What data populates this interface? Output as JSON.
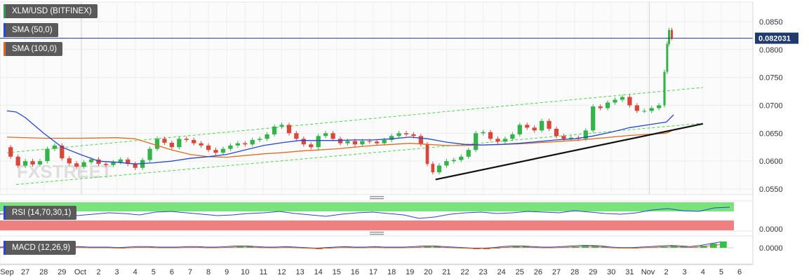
{
  "title": "XLM/USD (BITFINEX)",
  "watermark": "FXSTREET",
  "indicators": {
    "sma50": {
      "label": "SMA (50,0)",
      "color": "#2546d8"
    },
    "sma100": {
      "label": "SMA (100,0)",
      "color": "#e06b1f"
    },
    "rsi": {
      "label": "RSI (14,70,30,1)",
      "axis_label": "0.0000"
    },
    "macd": {
      "label": "MACD (12,26,9)",
      "axis_label": "0.0000"
    }
  },
  "price_tag": "0.082031",
  "chart_data": {
    "type": "candlestick",
    "title": "XLM/USD (BITFINEX)",
    "ylim": [
      0.054,
      0.0885
    ],
    "y_ticks": [
      "0.0850",
      "0.0800",
      "0.0750",
      "0.0700",
      "0.0650",
      "0.0600",
      "0.0550"
    ],
    "x_ticks": [
      "Sep",
      "27",
      "28",
      "29",
      "Oct",
      "2",
      "3",
      "4",
      "5",
      "6",
      "7",
      "8",
      "9",
      "10",
      "11",
      "12",
      "13",
      "14",
      "15",
      "16",
      "17",
      "18",
      "19",
      "20",
      "21",
      "22",
      "23",
      "24",
      "25",
      "26",
      "27",
      "28",
      "29",
      "30",
      "31",
      "Nov",
      "2",
      "3",
      "4",
      "5",
      "6"
    ],
    "last_price": 0.082031,
    "price_path": [
      [
        0,
        0.0625
      ],
      [
        0.4,
        0.0608
      ],
      [
        0.8,
        0.0592
      ],
      [
        1.2,
        0.06
      ],
      [
        1.6,
        0.0594
      ],
      [
        2.0,
        0.06
      ],
      [
        2.4,
        0.0622
      ],
      [
        2.8,
        0.0628
      ],
      [
        3.2,
        0.0605
      ],
      [
        3.6,
        0.0596
      ],
      [
        4.0,
        0.059
      ],
      [
        4.4,
        0.0598
      ],
      [
        4.8,
        0.0603
      ],
      [
        5.2,
        0.0595
      ],
      [
        5.6,
        0.0593
      ],
      [
        6.0,
        0.0598
      ],
      [
        6.4,
        0.0603
      ],
      [
        6.8,
        0.0595
      ],
      [
        7.2,
        0.0588
      ],
      [
        7.6,
        0.0602
      ],
      [
        8.0,
        0.0622
      ],
      [
        8.4,
        0.064
      ],
      [
        8.8,
        0.0633
      ],
      [
        9.2,
        0.0625
      ],
      [
        9.6,
        0.064
      ],
      [
        10.0,
        0.0638
      ],
      [
        10.4,
        0.0632
      ],
      [
        10.8,
        0.0628
      ],
      [
        11.2,
        0.062
      ],
      [
        11.6,
        0.0615
      ],
      [
        12.0,
        0.0622
      ],
      [
        12.4,
        0.0628
      ],
      [
        12.8,
        0.0632
      ],
      [
        13.2,
        0.063
      ],
      [
        13.6,
        0.0638
      ],
      [
        14.0,
        0.064
      ],
      [
        14.4,
        0.0648
      ],
      [
        14.8,
        0.0662
      ],
      [
        15.2,
        0.0665
      ],
      [
        15.6,
        0.065
      ],
      [
        16.0,
        0.064
      ],
      [
        16.4,
        0.063
      ],
      [
        16.8,
        0.0625
      ],
      [
        17.2,
        0.0645
      ],
      [
        17.6,
        0.065
      ],
      [
        18.0,
        0.064
      ],
      [
        18.4,
        0.0632
      ],
      [
        18.8,
        0.0636
      ],
      [
        19.2,
        0.063
      ],
      [
        19.6,
        0.0636
      ],
      [
        20.0,
        0.0635
      ],
      [
        20.4,
        0.0632
      ],
      [
        20.8,
        0.0638
      ],
      [
        21.2,
        0.0645
      ],
      [
        21.6,
        0.065
      ],
      [
        22.0,
        0.0648
      ],
      [
        22.4,
        0.0645
      ],
      [
        22.8,
        0.063
      ],
      [
        23.1,
        0.0595
      ],
      [
        23.4,
        0.058
      ],
      [
        23.8,
        0.0592
      ],
      [
        24.2,
        0.06
      ],
      [
        24.6,
        0.0602
      ],
      [
        25.0,
        0.0608
      ],
      [
        25.4,
        0.062
      ],
      [
        25.8,
        0.065
      ],
      [
        26.2,
        0.0652
      ],
      [
        26.6,
        0.064
      ],
      [
        27.0,
        0.0635
      ],
      [
        27.4,
        0.064
      ],
      [
        27.8,
        0.0648
      ],
      [
        28.2,
        0.0665
      ],
      [
        28.6,
        0.066
      ],
      [
        29.0,
        0.0655
      ],
      [
        29.4,
        0.0672
      ],
      [
        29.8,
        0.0658
      ],
      [
        30.2,
        0.0645
      ],
      [
        30.6,
        0.064
      ],
      [
        31.0,
        0.0642
      ],
      [
        31.4,
        0.064
      ],
      [
        31.8,
        0.0655
      ],
      [
        32.2,
        0.0698
      ],
      [
        32.6,
        0.0695
      ],
      [
        33.0,
        0.0705
      ],
      [
        33.4,
        0.071
      ],
      [
        33.8,
        0.0715
      ],
      [
        34.2,
        0.07
      ],
      [
        34.6,
        0.069
      ],
      [
        35.0,
        0.069
      ],
      [
        35.4,
        0.0695
      ],
      [
        35.8,
        0.07
      ],
      [
        36.0,
        0.076
      ],
      [
        36.1,
        0.081
      ],
      [
        36.2,
        0.0835
      ],
      [
        36.4,
        0.082031
      ]
    ],
    "sma50": [
      [
        0,
        0.069
      ],
      [
        0.5,
        0.0688
      ],
      [
        1,
        0.0678
      ],
      [
        2,
        0.065
      ],
      [
        3,
        0.0625
      ],
      [
        4,
        0.0612
      ],
      [
        5,
        0.06
      ],
      [
        6,
        0.0598
      ],
      [
        7,
        0.0595
      ],
      [
        8,
        0.0597
      ],
      [
        9,
        0.06
      ],
      [
        10,
        0.0605
      ],
      [
        11,
        0.0608
      ],
      [
        12,
        0.0612
      ],
      [
        13,
        0.062
      ],
      [
        14,
        0.0628
      ],
      [
        15,
        0.0633
      ],
      [
        16,
        0.0637
      ],
      [
        17,
        0.0637
      ],
      [
        18,
        0.0637
      ],
      [
        19,
        0.0638
      ],
      [
        20,
        0.0638
      ],
      [
        21,
        0.064
      ],
      [
        22,
        0.0643
      ],
      [
        23,
        0.064
      ],
      [
        24,
        0.0634
      ],
      [
        25,
        0.063
      ],
      [
        26,
        0.0629
      ],
      [
        27,
        0.063
      ],
      [
        28,
        0.0632
      ],
      [
        29,
        0.0635
      ],
      [
        30,
        0.0638
      ],
      [
        31,
        0.064
      ],
      [
        32,
        0.0645
      ],
      [
        33,
        0.0652
      ],
      [
        34,
        0.066
      ],
      [
        35,
        0.0665
      ],
      [
        36,
        0.067
      ],
      [
        36.4,
        0.0683
      ]
    ],
    "sma100": [
      [
        0,
        0.0643
      ],
      [
        2,
        0.0641
      ],
      [
        4,
        0.0641
      ],
      [
        6,
        0.0642
      ],
      [
        7,
        0.064
      ],
      [
        8,
        0.063
      ],
      [
        9,
        0.062
      ],
      [
        10,
        0.0612
      ],
      [
        11,
        0.0608
      ],
      [
        12,
        0.0607
      ],
      [
        13,
        0.061
      ],
      [
        14,
        0.0613
      ],
      [
        15,
        0.0615
      ],
      [
        16,
        0.0618
      ],
      [
        17,
        0.062
      ],
      [
        18,
        0.0622
      ],
      [
        19,
        0.0625
      ],
      [
        20,
        0.0628
      ],
      [
        21,
        0.063
      ],
      [
        22,
        0.0632
      ],
      [
        23,
        0.063
      ],
      [
        24,
        0.0628
      ],
      [
        25,
        0.0628
      ],
      [
        26,
        0.0629
      ],
      [
        27,
        0.063
      ],
      [
        28,
        0.0631
      ],
      [
        29,
        0.0633
      ],
      [
        30,
        0.0635
      ],
      [
        31,
        0.0637
      ],
      [
        32,
        0.064
      ],
      [
        33,
        0.0643
      ],
      [
        34,
        0.0646
      ],
      [
        35,
        0.0648
      ],
      [
        36,
        0.065
      ],
      [
        36.4,
        0.0656
      ]
    ],
    "channel_upper": [
      [
        0,
        0.0615
      ],
      [
        38,
        0.0732
      ]
    ],
    "channel_lower": [
      [
        0.5,
        0.0558
      ],
      [
        38,
        0.0668
      ]
    ],
    "trend_support": [
      [
        23.4,
        0.0567
      ],
      [
        38,
        0.0667
      ]
    ]
  }
}
